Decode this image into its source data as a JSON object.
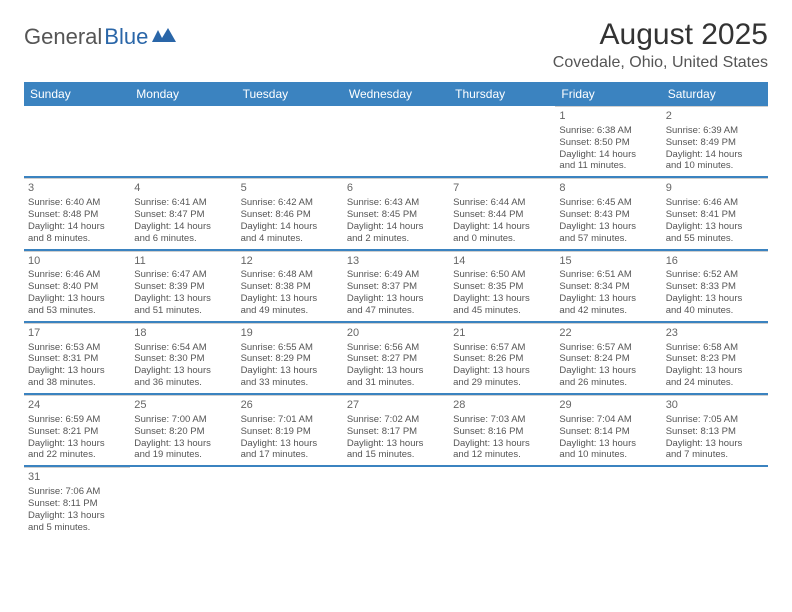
{
  "logo": {
    "general": "General",
    "blue": "Blue"
  },
  "title": "August 2025",
  "location": "Covedale, Ohio, United States",
  "colors": {
    "header_bg": "#3b83c0",
    "header_text": "#ffffff",
    "row_border": "#3b83c0",
    "cell_border": "#cfcfcf",
    "text": "#555555",
    "title": "#333333"
  },
  "days_of_week": [
    "Sunday",
    "Monday",
    "Tuesday",
    "Wednesday",
    "Thursday",
    "Friday",
    "Saturday"
  ],
  "weeks": [
    [
      null,
      null,
      null,
      null,
      null,
      {
        "n": "1",
        "sr": "Sunrise: 6:38 AM",
        "ss": "Sunset: 8:50 PM",
        "d1": "Daylight: 14 hours",
        "d2": "and 11 minutes."
      },
      {
        "n": "2",
        "sr": "Sunrise: 6:39 AM",
        "ss": "Sunset: 8:49 PM",
        "d1": "Daylight: 14 hours",
        "d2": "and 10 minutes."
      }
    ],
    [
      {
        "n": "3",
        "sr": "Sunrise: 6:40 AM",
        "ss": "Sunset: 8:48 PM",
        "d1": "Daylight: 14 hours",
        "d2": "and 8 minutes."
      },
      {
        "n": "4",
        "sr": "Sunrise: 6:41 AM",
        "ss": "Sunset: 8:47 PM",
        "d1": "Daylight: 14 hours",
        "d2": "and 6 minutes."
      },
      {
        "n": "5",
        "sr": "Sunrise: 6:42 AM",
        "ss": "Sunset: 8:46 PM",
        "d1": "Daylight: 14 hours",
        "d2": "and 4 minutes."
      },
      {
        "n": "6",
        "sr": "Sunrise: 6:43 AM",
        "ss": "Sunset: 8:45 PM",
        "d1": "Daylight: 14 hours",
        "d2": "and 2 minutes."
      },
      {
        "n": "7",
        "sr": "Sunrise: 6:44 AM",
        "ss": "Sunset: 8:44 PM",
        "d1": "Daylight: 14 hours",
        "d2": "and 0 minutes."
      },
      {
        "n": "8",
        "sr": "Sunrise: 6:45 AM",
        "ss": "Sunset: 8:43 PM",
        "d1": "Daylight: 13 hours",
        "d2": "and 57 minutes."
      },
      {
        "n": "9",
        "sr": "Sunrise: 6:46 AM",
        "ss": "Sunset: 8:41 PM",
        "d1": "Daylight: 13 hours",
        "d2": "and 55 minutes."
      }
    ],
    [
      {
        "n": "10",
        "sr": "Sunrise: 6:46 AM",
        "ss": "Sunset: 8:40 PM",
        "d1": "Daylight: 13 hours",
        "d2": "and 53 minutes."
      },
      {
        "n": "11",
        "sr": "Sunrise: 6:47 AM",
        "ss": "Sunset: 8:39 PM",
        "d1": "Daylight: 13 hours",
        "d2": "and 51 minutes."
      },
      {
        "n": "12",
        "sr": "Sunrise: 6:48 AM",
        "ss": "Sunset: 8:38 PM",
        "d1": "Daylight: 13 hours",
        "d2": "and 49 minutes."
      },
      {
        "n": "13",
        "sr": "Sunrise: 6:49 AM",
        "ss": "Sunset: 8:37 PM",
        "d1": "Daylight: 13 hours",
        "d2": "and 47 minutes."
      },
      {
        "n": "14",
        "sr": "Sunrise: 6:50 AM",
        "ss": "Sunset: 8:35 PM",
        "d1": "Daylight: 13 hours",
        "d2": "and 45 minutes."
      },
      {
        "n": "15",
        "sr": "Sunrise: 6:51 AM",
        "ss": "Sunset: 8:34 PM",
        "d1": "Daylight: 13 hours",
        "d2": "and 42 minutes."
      },
      {
        "n": "16",
        "sr": "Sunrise: 6:52 AM",
        "ss": "Sunset: 8:33 PM",
        "d1": "Daylight: 13 hours",
        "d2": "and 40 minutes."
      }
    ],
    [
      {
        "n": "17",
        "sr": "Sunrise: 6:53 AM",
        "ss": "Sunset: 8:31 PM",
        "d1": "Daylight: 13 hours",
        "d2": "and 38 minutes."
      },
      {
        "n": "18",
        "sr": "Sunrise: 6:54 AM",
        "ss": "Sunset: 8:30 PM",
        "d1": "Daylight: 13 hours",
        "d2": "and 36 minutes."
      },
      {
        "n": "19",
        "sr": "Sunrise: 6:55 AM",
        "ss": "Sunset: 8:29 PM",
        "d1": "Daylight: 13 hours",
        "d2": "and 33 minutes."
      },
      {
        "n": "20",
        "sr": "Sunrise: 6:56 AM",
        "ss": "Sunset: 8:27 PM",
        "d1": "Daylight: 13 hours",
        "d2": "and 31 minutes."
      },
      {
        "n": "21",
        "sr": "Sunrise: 6:57 AM",
        "ss": "Sunset: 8:26 PM",
        "d1": "Daylight: 13 hours",
        "d2": "and 29 minutes."
      },
      {
        "n": "22",
        "sr": "Sunrise: 6:57 AM",
        "ss": "Sunset: 8:24 PM",
        "d1": "Daylight: 13 hours",
        "d2": "and 26 minutes."
      },
      {
        "n": "23",
        "sr": "Sunrise: 6:58 AM",
        "ss": "Sunset: 8:23 PM",
        "d1": "Daylight: 13 hours",
        "d2": "and 24 minutes."
      }
    ],
    [
      {
        "n": "24",
        "sr": "Sunrise: 6:59 AM",
        "ss": "Sunset: 8:21 PM",
        "d1": "Daylight: 13 hours",
        "d2": "and 22 minutes."
      },
      {
        "n": "25",
        "sr": "Sunrise: 7:00 AM",
        "ss": "Sunset: 8:20 PM",
        "d1": "Daylight: 13 hours",
        "d2": "and 19 minutes."
      },
      {
        "n": "26",
        "sr": "Sunrise: 7:01 AM",
        "ss": "Sunset: 8:19 PM",
        "d1": "Daylight: 13 hours",
        "d2": "and 17 minutes."
      },
      {
        "n": "27",
        "sr": "Sunrise: 7:02 AM",
        "ss": "Sunset: 8:17 PM",
        "d1": "Daylight: 13 hours",
        "d2": "and 15 minutes."
      },
      {
        "n": "28",
        "sr": "Sunrise: 7:03 AM",
        "ss": "Sunset: 8:16 PM",
        "d1": "Daylight: 13 hours",
        "d2": "and 12 minutes."
      },
      {
        "n": "29",
        "sr": "Sunrise: 7:04 AM",
        "ss": "Sunset: 8:14 PM",
        "d1": "Daylight: 13 hours",
        "d2": "and 10 minutes."
      },
      {
        "n": "30",
        "sr": "Sunrise: 7:05 AM",
        "ss": "Sunset: 8:13 PM",
        "d1": "Daylight: 13 hours",
        "d2": "and 7 minutes."
      }
    ],
    [
      {
        "n": "31",
        "sr": "Sunrise: 7:06 AM",
        "ss": "Sunset: 8:11 PM",
        "d1": "Daylight: 13 hours",
        "d2": "and 5 minutes."
      },
      null,
      null,
      null,
      null,
      null,
      null
    ]
  ]
}
